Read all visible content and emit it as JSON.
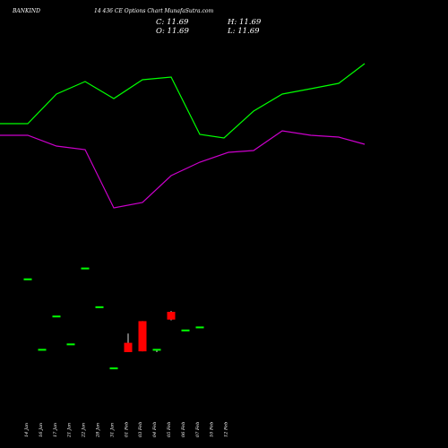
{
  "header": {
    "symbol": "BANKIND",
    "subtitle": "14 436  CE Options  Chart MunafaSutra.com",
    "close": "C: 11.69",
    "open": "O: 11.69",
    "high": "H: 11.69",
    "low": "L: 11.69"
  },
  "chart_data": {
    "type": "candlestick",
    "title": "",
    "xlabel": "",
    "ylabel": "",
    "colors": {
      "up": "#00ff00",
      "down": "#ff0000",
      "flat": "#00ff00",
      "background": "#000000",
      "line_upper": "#00ff00",
      "line_lower": "#cc00cc"
    },
    "x_tick_labels": [
      "14 Jan",
      "16 Jan",
      "17 Jan",
      "21 Jan",
      "22 Jan",
      "28 Jan",
      "31 Jan",
      "01 Feb",
      "03 Feb",
      "04 Feb",
      "05 Feb",
      "06 Feb",
      "07 Feb",
      "10 Feb",
      "12 Feb"
    ],
    "candles": [
      {
        "x": 31,
        "open": 17.9,
        "high": 17.9,
        "low": 17.9,
        "close": 17.9
      },
      {
        "x": 47,
        "open": 8.8,
        "high": 8.8,
        "low": 8.8,
        "close": 8.8
      },
      {
        "x": 63,
        "open": 13.1,
        "high": 13.1,
        "low": 13.1,
        "close": 13.1
      },
      {
        "x": 79,
        "open": 9.5,
        "high": 9.5,
        "low": 9.5,
        "close": 9.5
      },
      {
        "x": 95,
        "open": 19.3,
        "high": 19.3,
        "low": 19.3,
        "close": 19.3
      },
      {
        "x": 111,
        "open": 14.3,
        "high": 14.3,
        "low": 14.3,
        "close": 14.3
      },
      {
        "x": 127,
        "open": 6.4,
        "high": 6.4,
        "low": 6.4,
        "close": 6.4
      },
      {
        "x": 143,
        "open": 9.7,
        "high": 10.9,
        "low": 8.5,
        "close": 8.5
      },
      {
        "x": 159,
        "open": 12.5,
        "high": 12.5,
        "low": 8.6,
        "close": 8.6
      },
      {
        "x": 175,
        "open": 8.8,
        "high": 8.8,
        "low": 8.5,
        "close": 8.8
      },
      {
        "x": 191,
        "open": 13.7,
        "high": 13.8,
        "low": 12.6,
        "close": 12.7
      },
      {
        "x": 207,
        "open": 11.3,
        "high": 11.3,
        "low": 11.3,
        "close": 11.3
      },
      {
        "x": 223,
        "open": 11.69,
        "high": 11.69,
        "low": 11.69,
        "close": 11.69
      }
    ],
    "upper_line": [
      [
        0,
        138
      ],
      [
        31,
        138
      ],
      [
        63,
        105
      ],
      [
        95,
        91
      ],
      [
        127,
        110
      ],
      [
        159,
        89
      ],
      [
        191,
        86
      ],
      [
        223,
        150
      ],
      [
        250,
        154
      ],
      [
        283,
        124
      ],
      [
        315,
        105
      ],
      [
        347,
        99
      ],
      [
        378,
        93
      ],
      [
        407,
        71
      ]
    ],
    "lower_line": [
      [
        0,
        151
      ],
      [
        31,
        151
      ],
      [
        63,
        163
      ],
      [
        95,
        167
      ],
      [
        127,
        232
      ],
      [
        159,
        226
      ],
      [
        191,
        196
      ],
      [
        223,
        181
      ],
      [
        255,
        170
      ],
      [
        283,
        168
      ],
      [
        315,
        146
      ],
      [
        347,
        151
      ],
      [
        378,
        153
      ],
      [
        407,
        161
      ]
    ]
  }
}
